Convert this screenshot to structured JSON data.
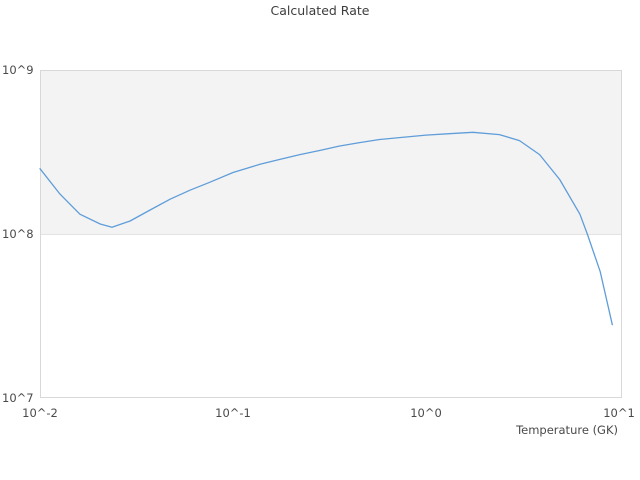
{
  "chart_data": {
    "type": "line",
    "title": "Calculated Rate",
    "xlabel": "Temperature (GK)",
    "ylabel": "",
    "x_scale": "log",
    "y_scale": "log",
    "x_ticks": [
      "10^-2",
      "10^-1",
      "10^0",
      "10^1"
    ],
    "y_ticks": [
      "10^9",
      "10^8",
      "10^7"
    ],
    "xlim": [
      0.01,
      10.5
    ],
    "ylim": [
      10000000.0,
      1000000000.0
    ],
    "grid": "horizontal band between 10^8 and 10^9 shaded",
    "legend": "none",
    "band": {
      "from": 100000000.0,
      "to": 1000000000.0
    },
    "series": [
      {
        "name": "Calculated Rate",
        "x": [
          0.01,
          0.0127,
          0.0161,
          0.0205,
          0.0236,
          0.0293,
          0.0372,
          0.0472,
          0.0599,
          0.076,
          0.1,
          0.138,
          0.175,
          0.222,
          0.281,
          0.357,
          0.453,
          0.574,
          0.728,
          1.0,
          1.32,
          1.75,
          2.4,
          3.05,
          3.88,
          4.93,
          6.27,
          6.85,
          7.99,
          9.23
        ],
        "y": [
          250000000.0,
          175000000.0,
          132000000.0,
          115000000.0,
          110000000.0,
          120000000.0,
          140000000.0,
          163000000.0,
          185000000.0,
          207000000.0,
          237000000.0,
          266000000.0,
          285000000.0,
          305000000.0,
          323000000.0,
          344000000.0,
          361000000.0,
          377000000.0,
          387000000.0,
          401000000.0,
          409000000.0,
          417000000.0,
          404000000.0,
          371000000.0,
          305000000.0,
          215000000.0,
          132000000.0,
          100000000.0,
          59000000.0,
          28000000.0
        ]
      }
    ],
    "colors": {
      "line": "#5f9dd9",
      "band_fill": "#f3f3f3",
      "plot_border": "#d8d8d8",
      "grid_line": "#e3e3e3",
      "title_text": "#3d3d3d",
      "tick_text": "#4a4a4a",
      "background": "#ffffff"
    }
  }
}
